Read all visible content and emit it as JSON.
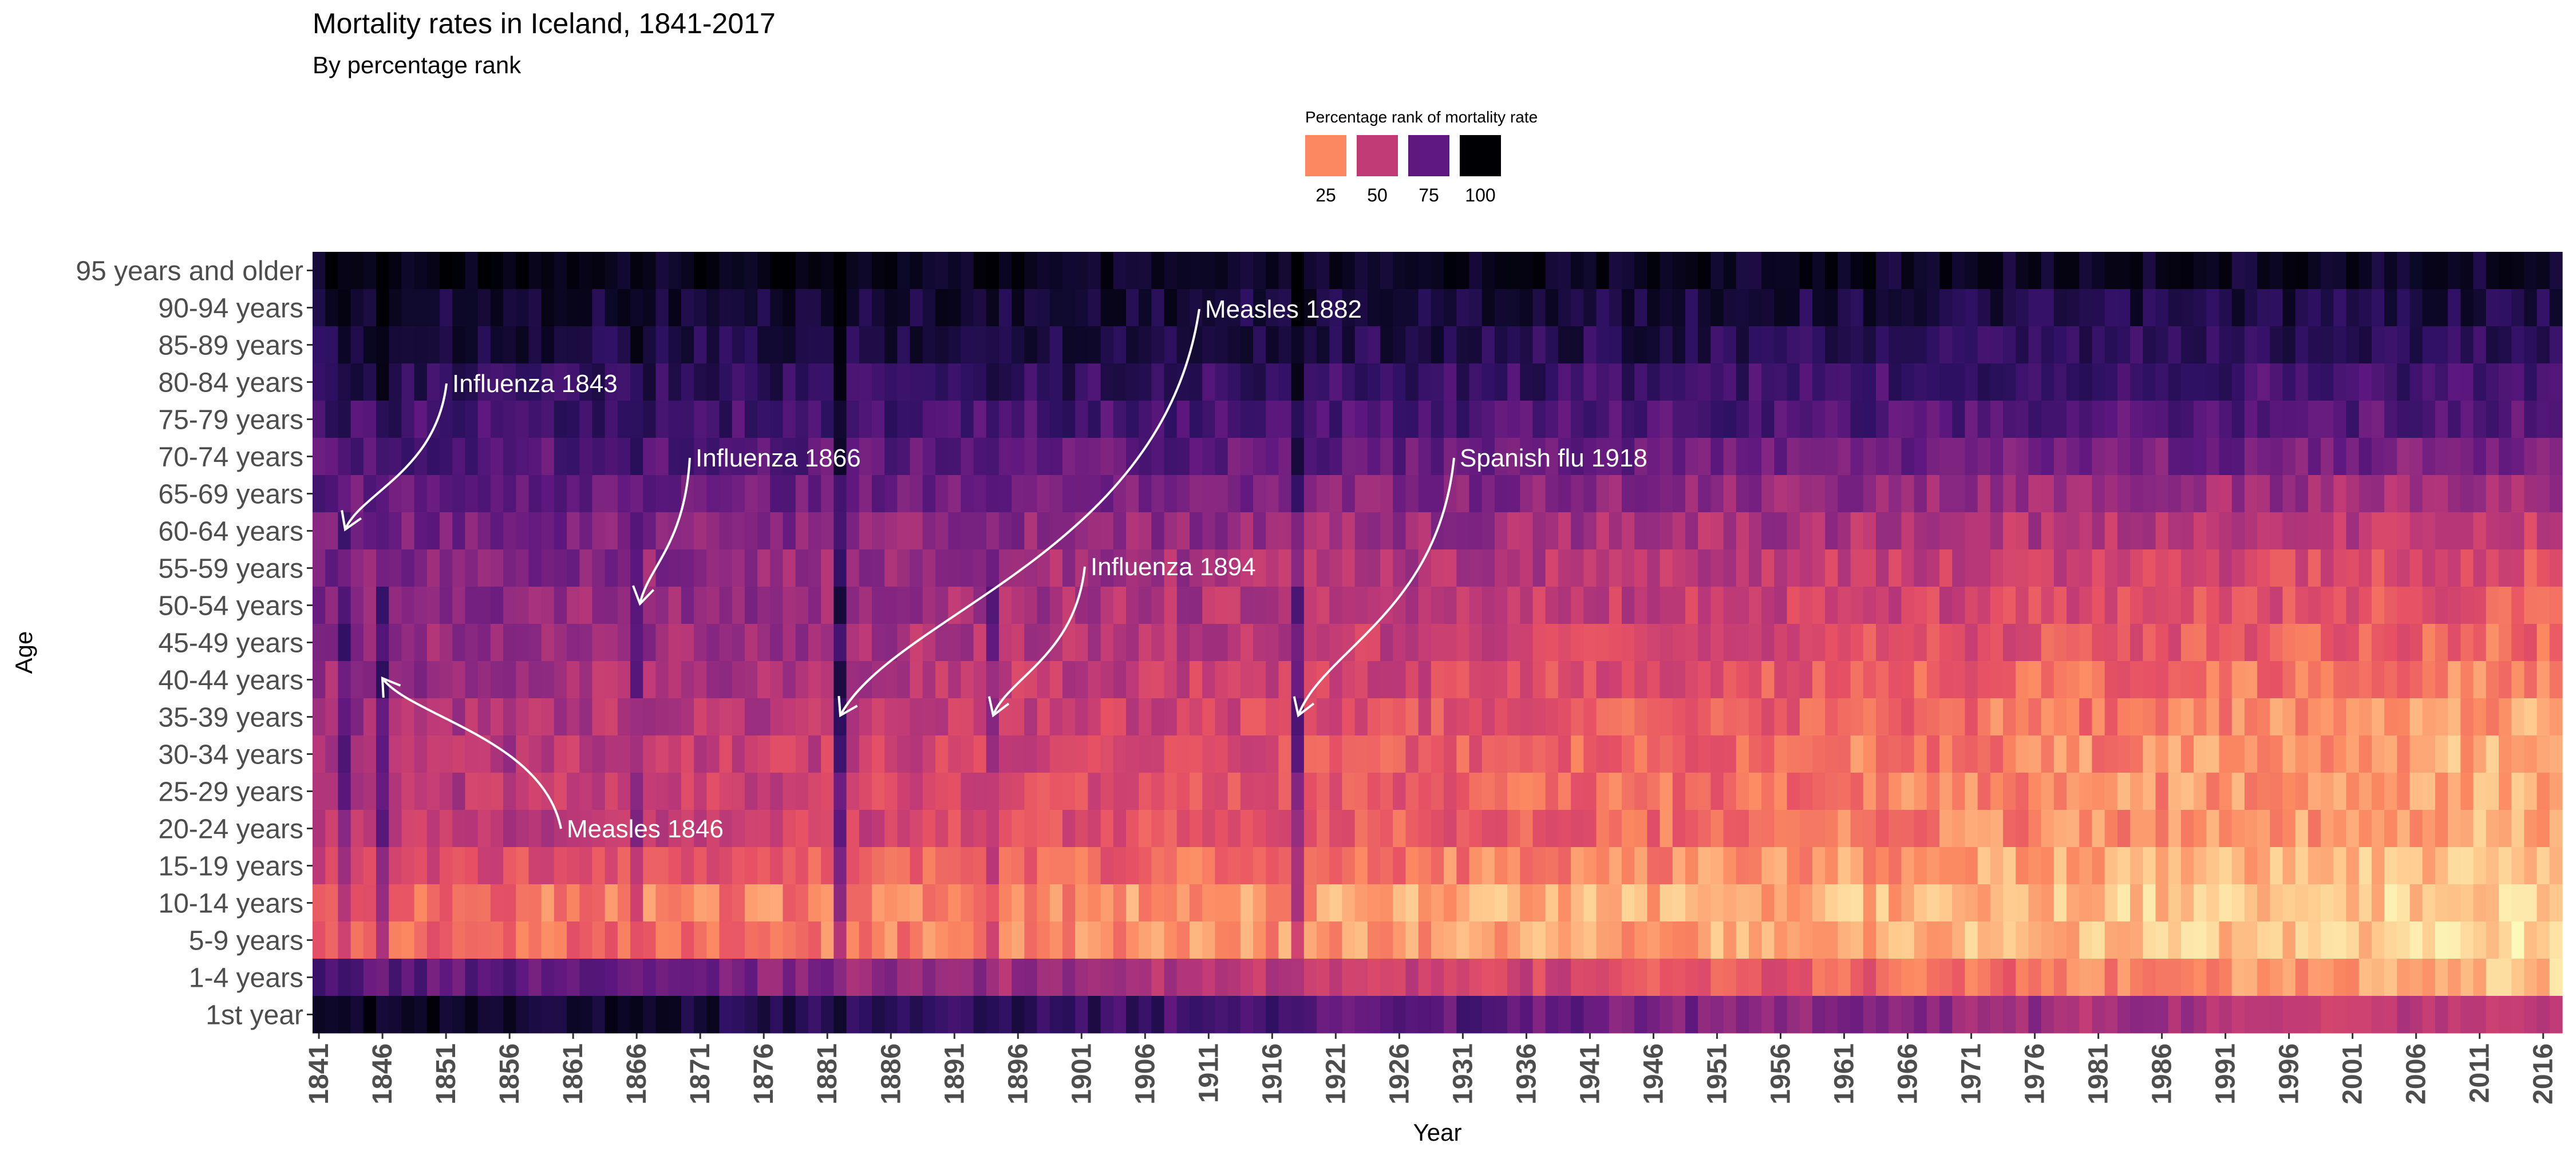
{
  "chart_data": {
    "type": "heatmap",
    "title": "Mortality rates in Iceland, 1841-2017",
    "subtitle": "By percentage rank",
    "xlabel": "Year",
    "ylabel": "Age",
    "x_range": [
      1841,
      2017
    ],
    "x_ticks": [
      "1841",
      "1846",
      "1851",
      "1856",
      "1861",
      "1866",
      "1871",
      "1876",
      "1881",
      "1886",
      "1891",
      "1896",
      "1901",
      "1906",
      "1911",
      "1916",
      "1921",
      "1926",
      "1931",
      "1936",
      "1941",
      "1946",
      "1951",
      "1956",
      "1961",
      "1966",
      "1971",
      "1976",
      "1981",
      "1986",
      "1991",
      "1996",
      "2001",
      "2006",
      "2011",
      "2016"
    ],
    "age_groups": [
      "95 years and older",
      "90-94 years",
      "85-89 years",
      "80-84 years",
      "75-79 years",
      "70-74 years",
      "65-69 years",
      "60-64 years",
      "55-59 years",
      "50-54 years",
      "45-49 years",
      "40-44 years",
      "35-39 years",
      "30-34 years",
      "25-29 years",
      "20-24 years",
      "15-19 years",
      "10-14 years",
      "5-9 years",
      "1-4 years",
      "1st year"
    ],
    "value_note": "Percentage rank of mortality rate",
    "baseline_1841": [
      94,
      88,
      85,
      80,
      75,
      70,
      66,
      62,
      60,
      58,
      56,
      54,
      52,
      50,
      48,
      47,
      38,
      28,
      30,
      70,
      95
    ],
    "baseline_2017": [
      90,
      83,
      78,
      72,
      68,
      60,
      50,
      42,
      35,
      32,
      28,
      22,
      18,
      15,
      15,
      15,
      12,
      8,
      8,
      12,
      40
    ],
    "epidemics": [
      {
        "year": 1843,
        "label": "Influenza 1843",
        "bump": 14
      },
      {
        "year": 1846,
        "label": "Measles 1846",
        "bump": 18
      },
      {
        "year": 1866,
        "label": "Influenza 1866",
        "bump": 12
      },
      {
        "year": 1882,
        "label": "Measles 1882",
        "bump": 30
      },
      {
        "year": 1894,
        "label": "Influenza 1894",
        "bump": 12
      },
      {
        "year": 1918,
        "label": "Spanish flu 1918",
        "bump": 26
      }
    ],
    "legend": {
      "title": "Percentage rank of mortality rate",
      "position": "top-center",
      "items": [
        {
          "label": "25",
          "value": 25,
          "color": "#FB8861"
        },
        {
          "label": "50",
          "value": 50,
          "color": "#C03A76"
        },
        {
          "label": "75",
          "value": 75,
          "color": "#5F187F"
        },
        {
          "label": "100",
          "value": 100,
          "color": "#000004"
        }
      ]
    },
    "colorscale": "magma-reversed",
    "colors": {
      "scale": [
        "#FCFDBF",
        "#FEC98D",
        "#FB8861",
        "#E65164",
        "#C03A76",
        "#8C2981",
        "#5F187F",
        "#2F1164",
        "#0D0829",
        "#000004"
      ],
      "annotation": "#FFFFFF",
      "axis_text": "#4D4D4D"
    }
  }
}
